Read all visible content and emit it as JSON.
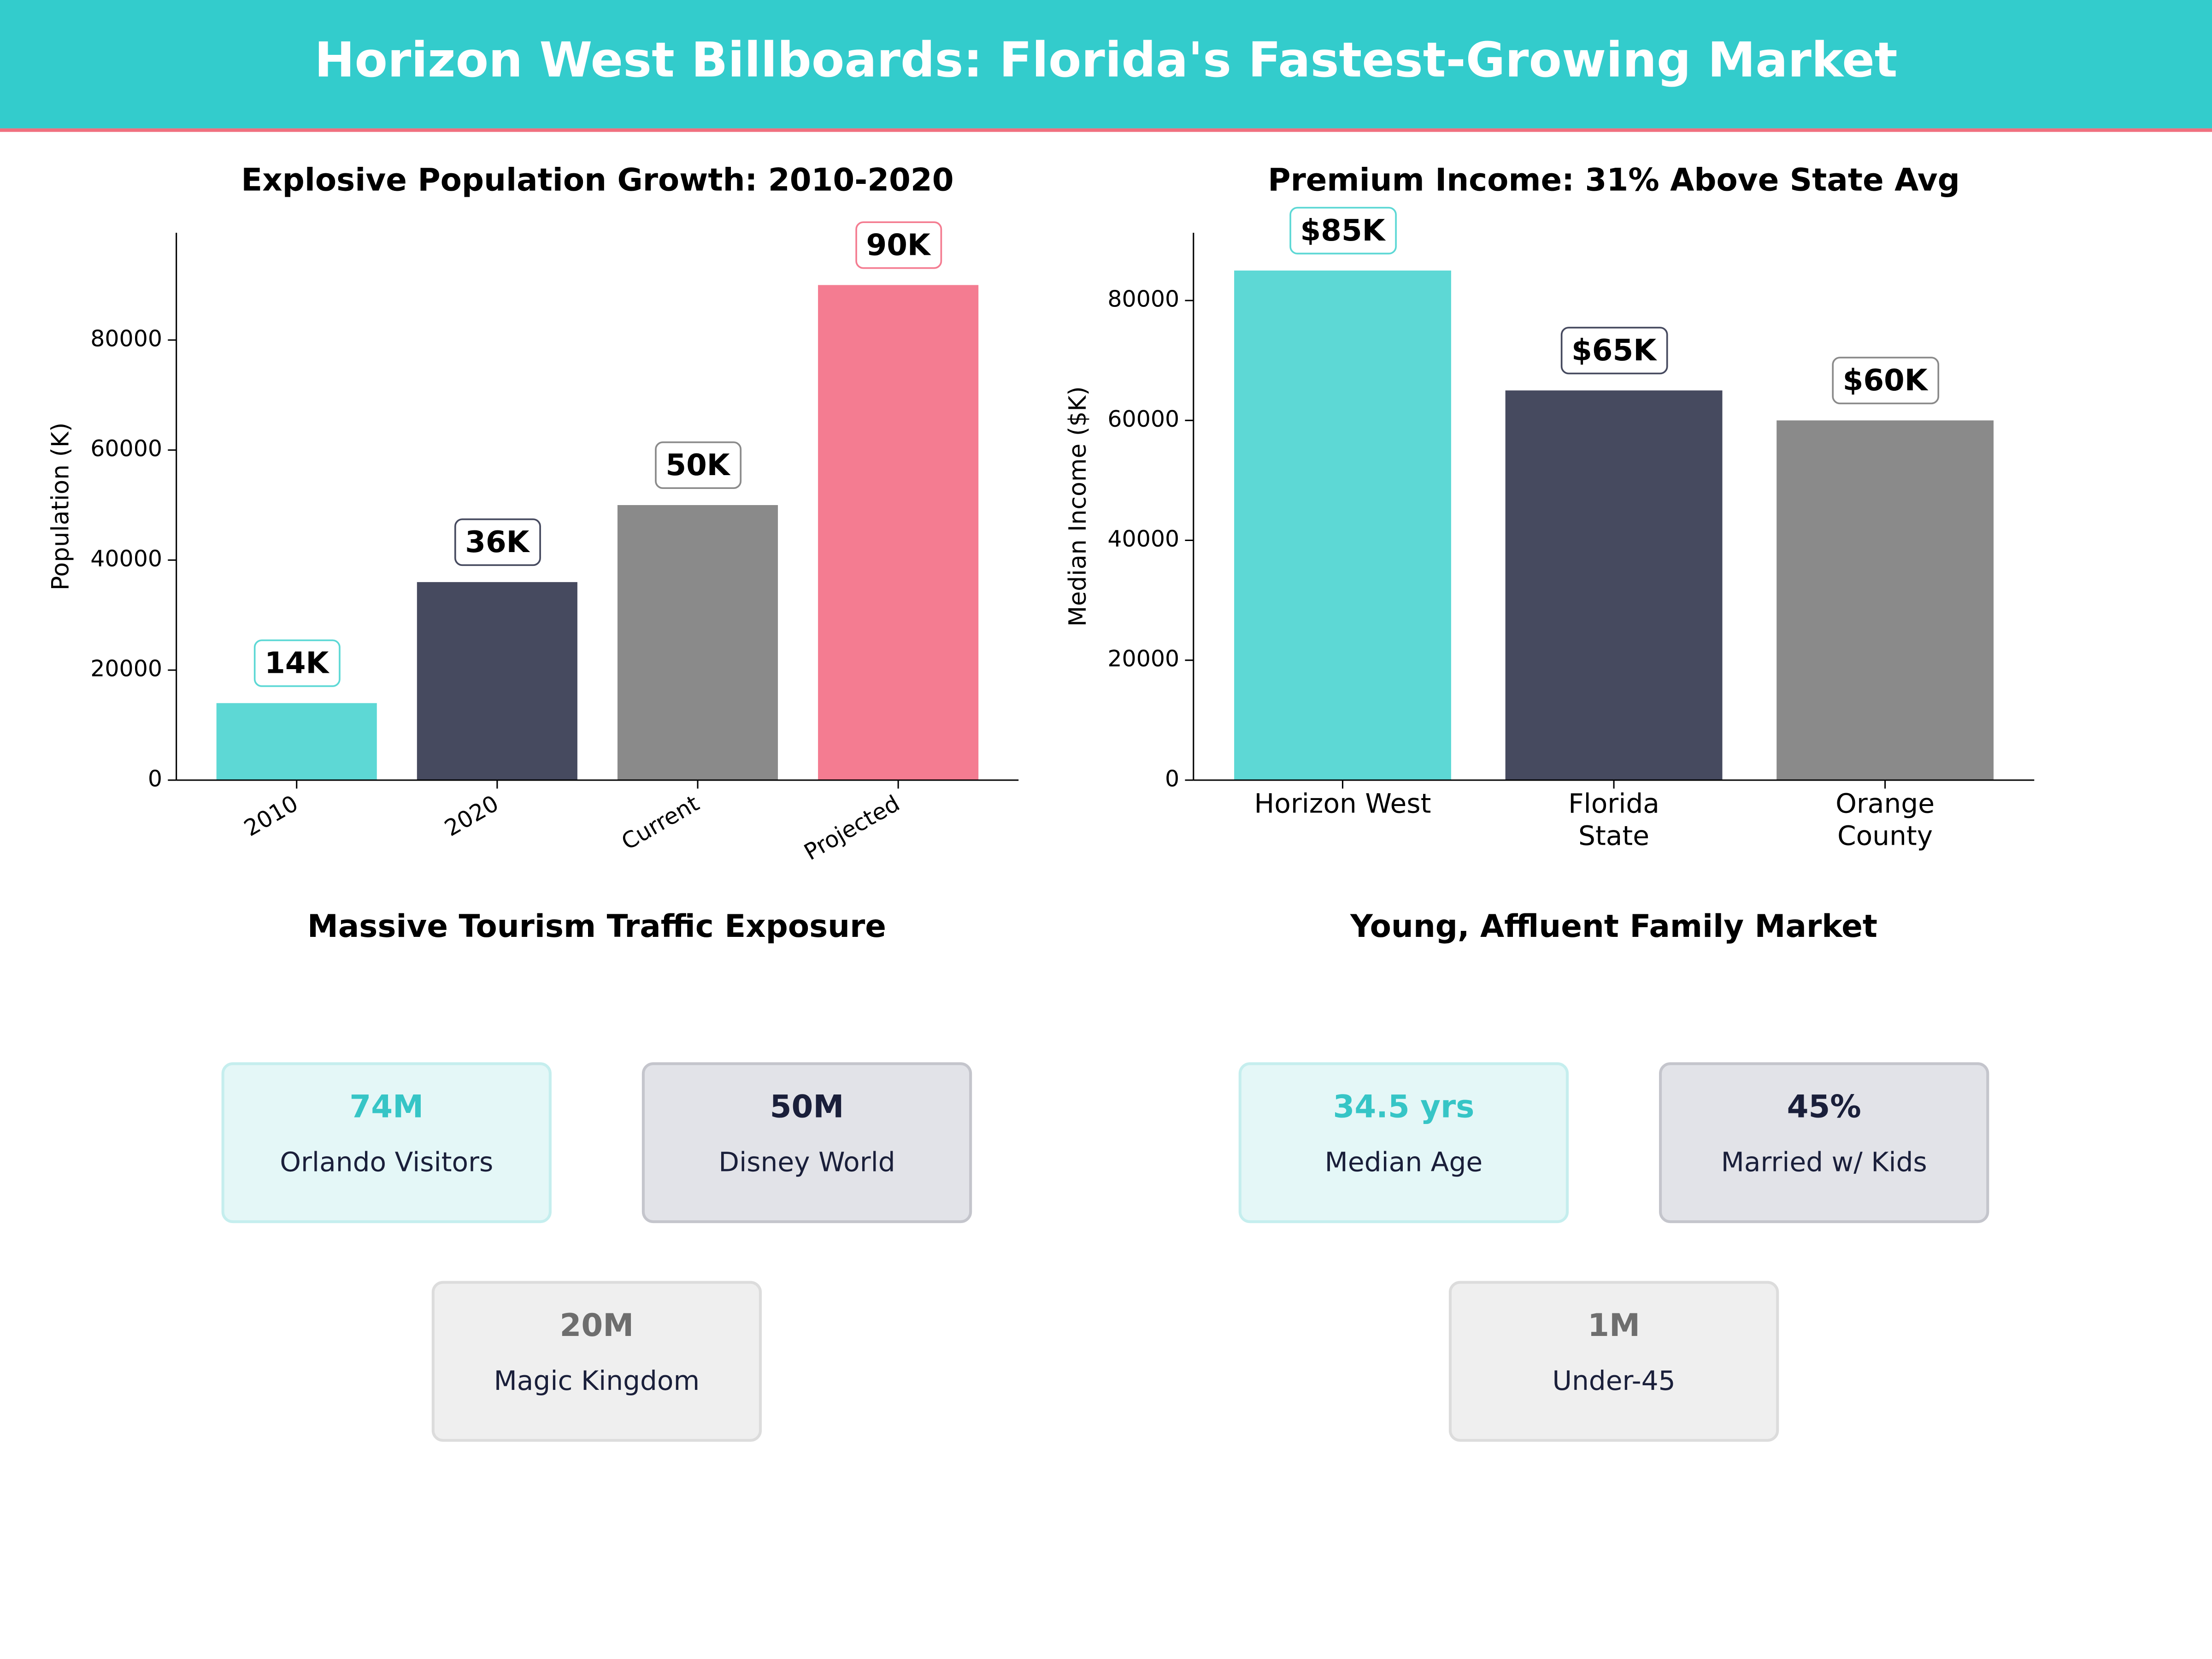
{
  "title": "Horizon West Billboards: Florida's Fastest-Growing Market",
  "chart_data": [
    {
      "type": "bar",
      "title": "Explosive Population Growth: 2010-2020",
      "ylabel": "Population (K)",
      "categories": [
        "2010",
        "2020",
        "Current",
        "Projected"
      ],
      "values": [
        14000,
        36000,
        50000,
        90000
      ],
      "value_labels": [
        "14K",
        "36K",
        "50K",
        "90K"
      ],
      "colors": [
        "#5dd8d5",
        "#464a5f",
        "#8a8a8a",
        "#f47c91"
      ],
      "ylim": [
        0,
        99500
      ],
      "yticks": [
        0,
        20000,
        40000,
        60000,
        80000
      ]
    },
    {
      "type": "bar",
      "title": "Premium Income: 31% Above State Avg",
      "ylabel": "Median Income ($K)",
      "categories": [
        "Horizon West",
        "Florida\nState",
        "Orange\nCounty"
      ],
      "values": [
        85000,
        65000,
        60000
      ],
      "value_labels": [
        "$85K",
        "$65K",
        "$60K"
      ],
      "colors": [
        "#5dd8d5",
        "#464a5f",
        "#8a8a8a"
      ],
      "ylim": [
        0,
        91300
      ],
      "yticks": [
        0,
        20000,
        40000,
        60000,
        80000
      ]
    }
  ],
  "panels": [
    {
      "title": "Massive Tourism Traffic Exposure",
      "cards": [
        {
          "value": "74M",
          "label": "Orlando Visitors"
        },
        {
          "value": "50M",
          "label": "Disney World"
        },
        {
          "value": "20M",
          "label": "Magic Kingdom"
        }
      ]
    },
    {
      "title": "Young, Affluent Family Market",
      "cards": [
        {
          "value": "34.5 yrs",
          "label": "Median Age"
        },
        {
          "value": "45%",
          "label": "Married w/ Kids"
        },
        {
          "value": "1M",
          "label": "Under-45"
        }
      ]
    }
  ]
}
